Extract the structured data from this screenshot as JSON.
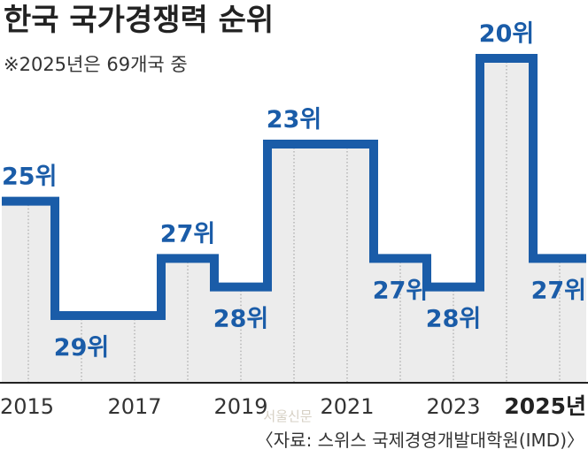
{
  "title": "한국 국가경쟁력 순위",
  "subtitle": "※2025년은 69개국 중",
  "source": "〈자료: 스위스 국제경영개발대학원(IMD)〉",
  "watermark": "서울신문",
  "colors": {
    "line": "#1a5ca8",
    "area": "#ececec",
    "axis": "#222222",
    "grid": "#9a9a9a",
    "label": "#1a5ca8"
  },
  "chart_data": {
    "type": "line",
    "step": true,
    "y_inverted": true,
    "ylim": [
      30,
      19
    ],
    "xlabel": "",
    "ylabel": "",
    "x": [
      2015,
      2016,
      2017,
      2018,
      2019,
      2020,
      2021,
      2022,
      2023,
      2024,
      2025
    ],
    "values": [
      25,
      29,
      29,
      27,
      28,
      23,
      23,
      27,
      28,
      20,
      27
    ],
    "unit_suffix": "위",
    "point_labels": [
      "25위",
      "29위",
      "",
      "27위",
      "28위",
      "23위",
      "",
      "27위",
      "28위",
      "20위",
      "27위"
    ],
    "x_ticks": [
      {
        "x": 2015,
        "label": "2015",
        "bold": false
      },
      {
        "x": 2017,
        "label": "2017",
        "bold": false
      },
      {
        "x": 2019,
        "label": "2019",
        "bold": false
      },
      {
        "x": 2021,
        "label": "2021",
        "bold": false
      },
      {
        "x": 2023,
        "label": "2023",
        "bold": false
      },
      {
        "x": 2025,
        "label": "2025년",
        "bold": true
      }
    ],
    "grid": "vertical-dotted"
  }
}
